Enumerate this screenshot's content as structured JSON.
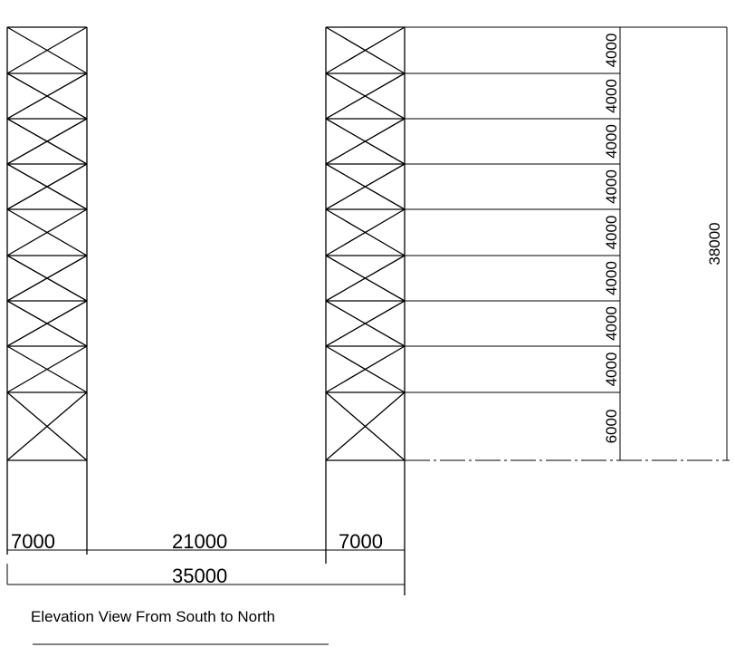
{
  "drawing": {
    "caption": "Elevation View From South to North",
    "bay_widths": [
      "7000",
      "21000",
      "7000"
    ],
    "total_width": "35000",
    "story_heights": [
      "4000",
      "4000",
      "4000",
      "4000",
      "4000",
      "4000",
      "4000",
      "4000",
      "6000"
    ],
    "total_height": "38000"
  }
}
